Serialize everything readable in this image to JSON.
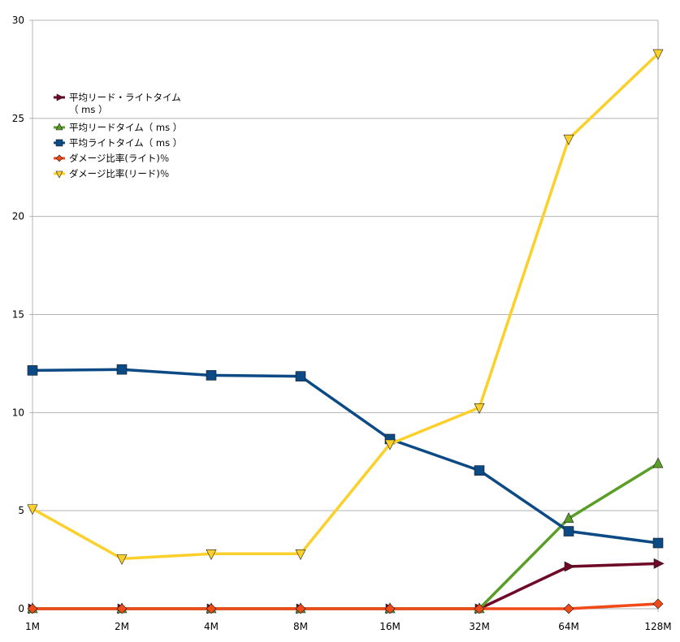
{
  "chart_data": {
    "type": "line",
    "title": "",
    "xlabel": "",
    "ylabel": "",
    "categories": [
      "1M",
      "2M",
      "4M",
      "8M",
      "16M",
      "32M",
      "64M",
      "128M"
    ],
    "ylim": [
      0,
      30
    ],
    "yticks": [
      "0",
      "5",
      "10",
      "15",
      "20",
      "25",
      "30"
    ],
    "grid": true,
    "legend_position": "top-left",
    "series": [
      {
        "name": "平均リード・ライトタイム\n（ ms ）",
        "color": "#6e0a28",
        "marker": "triangle-right",
        "values": [
          0,
          0,
          0,
          0,
          0,
          0,
          2.15,
          2.3
        ]
      },
      {
        "name": "平均リードタイム（ ms ）",
        "color": "#5a9e28",
        "marker": "triangle-up",
        "values": [
          0,
          0,
          0,
          0,
          0,
          0,
          4.6,
          7.4
        ]
      },
      {
        "name": "平均ライトタイム（ ms ）",
        "color": "#0b4a85",
        "marker": "square",
        "values": [
          12.15,
          12.2,
          11.9,
          11.85,
          8.65,
          7.05,
          3.95,
          3.35
        ]
      },
      {
        "name": "ダメージ比率(ライト)％",
        "color": "#f04a18",
        "marker": "diamond",
        "values": [
          0,
          0,
          0,
          0,
          0,
          0,
          0,
          0.25
        ]
      },
      {
        "name": "ダメージ比率(リード)％",
        "color": "#fcd02a",
        "marker": "triangle-down",
        "values": [
          5.1,
          2.55,
          2.8,
          2.8,
          8.4,
          10.25,
          23.95,
          28.3
        ]
      }
    ]
  }
}
